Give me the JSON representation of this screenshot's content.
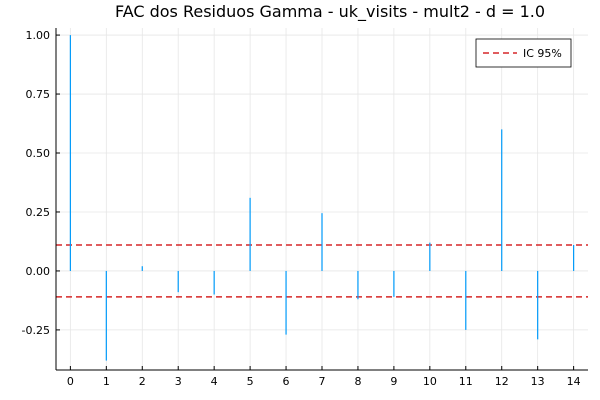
{
  "chart_data": {
    "type": "bar",
    "title": "FAC dos Residuos  Gamma - uk_visits - mult2 - d = 1.0",
    "x": [
      0,
      1,
      2,
      3,
      4,
      5,
      6,
      7,
      8,
      9,
      10,
      11,
      12,
      13,
      14
    ],
    "values": [
      1.0,
      -0.38,
      0.02,
      -0.09,
      -0.1,
      0.31,
      -0.27,
      0.245,
      -0.12,
      -0.11,
      0.12,
      -0.25,
      0.6,
      -0.29,
      0.11
    ],
    "ci": 0.11,
    "xlim": [
      -0.4,
      14.4
    ],
    "ylim": [
      -0.42,
      1.03
    ],
    "yticks": [
      "1.00",
      "0.75",
      "0.50",
      "0.25",
      "0.00",
      "-0.25"
    ],
    "ytick_values": [
      1.0,
      0.75,
      0.5,
      0.25,
      0.0,
      -0.25
    ],
    "xticks": [
      "0",
      "1",
      "2",
      "3",
      "4",
      "5",
      "6",
      "7",
      "8",
      "9",
      "10",
      "11",
      "12",
      "13",
      "14"
    ],
    "legend": {
      "label": "IC 95%",
      "position": "top-right"
    },
    "colors": {
      "stems": "#009af9",
      "ci": "#e26f46",
      "ci_line": "#d62728"
    },
    "grid": true
  }
}
